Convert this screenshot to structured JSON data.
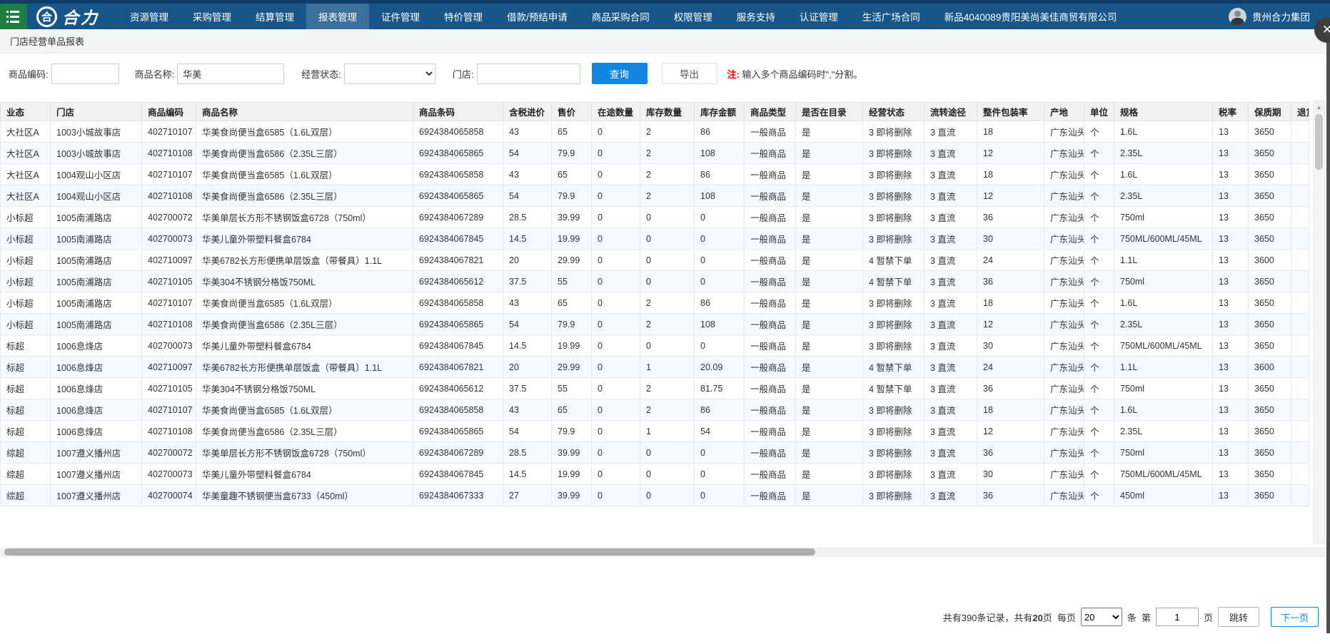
{
  "colors": {
    "navbar_bg": "#175689",
    "hamburger_green": "#1f7e41",
    "primary_button_blue": "#1385e3",
    "note_red": "#ff0000",
    "zebra_row": "#f3f9fd"
  },
  "navbar": {
    "logo_circle_glyph": "合",
    "logo_text": "合力",
    "menu": [
      "资源管理",
      "采购管理",
      "结算管理",
      "报表管理",
      "证件管理",
      "特价管理",
      "借款/预结申请",
      "商品采购合同",
      "权限管理",
      "服务支持",
      "认证管理",
      "生活广场合同",
      "新品4040089贵阳美尚美佳商贸有限公司"
    ],
    "active_item": "报表管理",
    "user_company": "贵州合力集团",
    "close_glyph": "✕"
  },
  "tab": {
    "title": "门店经营单品报表"
  },
  "filters": {
    "product_code_label": "商品编码:",
    "product_code_value": "",
    "product_name_label": "商品名称:",
    "product_name_value": "华美",
    "status_label": "经营状态:",
    "status_value": "",
    "store_label": "门店:",
    "store_value": "",
    "search_button": "查询",
    "export_button": "导出",
    "note_prefix": "注:",
    "note_text": "输入多个商品编码时\",\"分割。"
  },
  "table": {
    "columns": [
      "业态",
      "门店",
      "商品编码",
      "商品名称",
      "商品条码",
      "含税进价",
      "售价",
      "在途数量",
      "库存数量",
      "库存金额",
      "商品类型",
      "是否在目录",
      "经营状态",
      "流转途径",
      "整件包装率",
      "产地",
      "单位",
      "规格",
      "税率",
      "保质期",
      "退货"
    ],
    "rows": [
      [
        "大社区A",
        "1003小城故事店",
        "402710107",
        "华美食尚便当盒6585（1.6L双层）",
        "6924384065858",
        "43",
        "65",
        "0",
        "2",
        "86",
        "一般商品",
        "是",
        "3 即将删除",
        "3 直流",
        "18",
        "广东汕头",
        "个",
        "1.6L",
        "13",
        "3650",
        ""
      ],
      [
        "大社区A",
        "1003小城故事店",
        "402710108",
        "华美食尚便当盒6586（2.35L三层）",
        "6924384065865",
        "54",
        "79.9",
        "0",
        "2",
        "108",
        "一般商品",
        "是",
        "3 即将删除",
        "3 直流",
        "12",
        "广东汕头",
        "个",
        "2.35L",
        "13",
        "3650",
        ""
      ],
      [
        "大社区A",
        "1004观山小区店",
        "402710107",
        "华美食尚便当盒6585（1.6L双层）",
        "6924384065858",
        "43",
        "65",
        "0",
        "2",
        "86",
        "一般商品",
        "是",
        "3 即将删除",
        "3 直流",
        "18",
        "广东汕头",
        "个",
        "1.6L",
        "13",
        "3650",
        ""
      ],
      [
        "大社区A",
        "1004观山小区店",
        "402710108",
        "华美食尚便当盒6586（2.35L三层）",
        "6924384065865",
        "54",
        "79.9",
        "0",
        "2",
        "108",
        "一般商品",
        "是",
        "3 即将删除",
        "3 直流",
        "12",
        "广东汕头",
        "个",
        "2.35L",
        "13",
        "3650",
        ""
      ],
      [
        "小标超",
        "1005南浦路店",
        "402700072",
        "华美单层长方形不锈钢饭盒6728（750ml）",
        "6924384067289",
        "28.5",
        "39.99",
        "0",
        "0",
        "0",
        "一般商品",
        "是",
        "3 即将删除",
        "3 直流",
        "36",
        "广东汕头",
        "个",
        "750ml",
        "13",
        "3650",
        ""
      ],
      [
        "小标超",
        "1005南浦路店",
        "402700073",
        "华美儿童外带塑料餐盒6784",
        "6924384067845",
        "14.5",
        "19.99",
        "0",
        "0",
        "0",
        "一般商品",
        "是",
        "3 即将删除",
        "3 直流",
        "30",
        "广东汕头",
        "个",
        "750ML/600ML/45ML",
        "13",
        "3650",
        ""
      ],
      [
        "小标超",
        "1005南浦路店",
        "402710097",
        "华美6782长方形便携单层饭盒（带餐具）1.1L",
        "6924384067821",
        "20",
        "29.99",
        "0",
        "0",
        "0",
        "一般商品",
        "是",
        "4 暂禁下单",
        "3 直流",
        "24",
        "广东汕头",
        "个",
        "1.1L",
        "13",
        "3600",
        ""
      ],
      [
        "小标超",
        "1005南浦路店",
        "402710105",
        "华美304不锈钢分格饭750ML",
        "6924384065612",
        "37.5",
        "55",
        "0",
        "0",
        "0",
        "一般商品",
        "是",
        "4 暂禁下单",
        "3 直流",
        "36",
        "广东汕头",
        "个",
        "750ml",
        "13",
        "3650",
        ""
      ],
      [
        "小标超",
        "1005南浦路店",
        "402710107",
        "华美食尚便当盒6585（1.6L双层）",
        "6924384065858",
        "43",
        "65",
        "0",
        "2",
        "86",
        "一般商品",
        "是",
        "3 即将删除",
        "3 直流",
        "18",
        "广东汕头",
        "个",
        "1.6L",
        "13",
        "3650",
        ""
      ],
      [
        "小标超",
        "1005南浦路店",
        "402710108",
        "华美食尚便当盒6586（2.35L三层）",
        "6924384065865",
        "54",
        "79.9",
        "0",
        "2",
        "108",
        "一般商品",
        "是",
        "3 即将删除",
        "3 直流",
        "12",
        "广东汕头",
        "个",
        "2.35L",
        "13",
        "3650",
        ""
      ],
      [
        "标超",
        "1006息烽店",
        "402700073",
        "华美儿童外带塑料餐盒6784",
        "6924384067845",
        "14.5",
        "19.99",
        "0",
        "0",
        "0",
        "一般商品",
        "是",
        "3 即将删除",
        "3 直流",
        "30",
        "广东汕头",
        "个",
        "750ML/600ML/45ML",
        "13",
        "3650",
        ""
      ],
      [
        "标超",
        "1006息烽店",
        "402710097",
        "华美6782长方形便携单层饭盒（带餐具）1.1L",
        "6924384067821",
        "20",
        "29.99",
        "0",
        "1",
        "20.09",
        "一般商品",
        "是",
        "4 暂禁下单",
        "3 直流",
        "24",
        "广东汕头",
        "个",
        "1.1L",
        "13",
        "3600",
        ""
      ],
      [
        "标超",
        "1006息烽店",
        "402710105",
        "华美304不锈钢分格饭750ML",
        "6924384065612",
        "37.5",
        "55",
        "0",
        "2",
        "81.75",
        "一般商品",
        "是",
        "4 暂禁下单",
        "3 直流",
        "36",
        "广东汕头",
        "个",
        "750ml",
        "13",
        "3650",
        ""
      ],
      [
        "标超",
        "1006息烽店",
        "402710107",
        "华美食尚便当盒6585（1.6L双层）",
        "6924384065858",
        "43",
        "65",
        "0",
        "2",
        "86",
        "一般商品",
        "是",
        "3 即将删除",
        "3 直流",
        "18",
        "广东汕头",
        "个",
        "1.6L",
        "13",
        "3650",
        ""
      ],
      [
        "标超",
        "1006息烽店",
        "402710108",
        "华美食尚便当盒6586（2.35L三层）",
        "6924384065865",
        "54",
        "79.9",
        "0",
        "1",
        "54",
        "一般商品",
        "是",
        "3 即将删除",
        "3 直流",
        "12",
        "广东汕头",
        "个",
        "2.35L",
        "13",
        "3650",
        ""
      ],
      [
        "综超",
        "1007遵义播州店",
        "402700072",
        "华美单层长方形不锈钢饭盒6728（750ml）",
        "6924384067289",
        "28.5",
        "39.99",
        "0",
        "0",
        "0",
        "一般商品",
        "是",
        "3 即将删除",
        "3 直流",
        "36",
        "广东汕头",
        "个",
        "750ml",
        "13",
        "3650",
        ""
      ],
      [
        "综超",
        "1007遵义播州店",
        "402700073",
        "华美儿童外带塑料餐盒6784",
        "6924384067845",
        "14.5",
        "19.99",
        "0",
        "0",
        "0",
        "一般商品",
        "是",
        "3 即将删除",
        "3 直流",
        "30",
        "广东汕头",
        "个",
        "750ML/600ML/45ML",
        "13",
        "3650",
        ""
      ],
      [
        "综超",
        "1007遵义播州店",
        "402700074",
        "华美童趣不锈钢便当盒6733（450ml）",
        "6924384067333",
        "27",
        "39.99",
        "0",
        "0",
        "0",
        "一般商品",
        "是",
        "3 即将删除",
        "3 直流",
        "36",
        "广东汕头",
        "个",
        "450ml",
        "13",
        "3650",
        ""
      ]
    ]
  },
  "pagination": {
    "summary_prefix": "共有390条记录，共有",
    "total_pages": "20",
    "summary_suffix": "页",
    "per_page_label": "每页",
    "per_page_value": "20",
    "per_page_suffix": "条",
    "page_label": "第",
    "page_value": "1",
    "page_suffix": "页",
    "jump_button": "跳转",
    "next_button": "下一页"
  }
}
